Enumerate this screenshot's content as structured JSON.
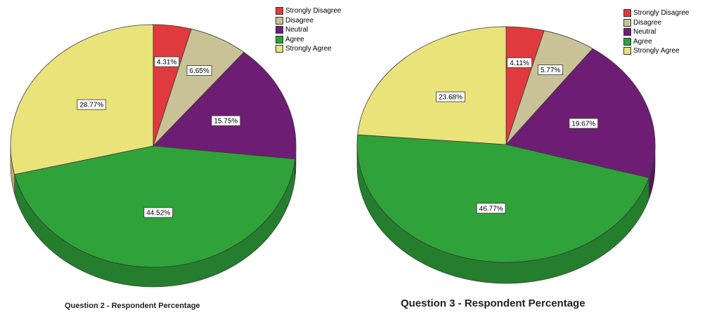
{
  "colors": {
    "Strongly Disagree": "#e03a3e",
    "Disagree": "#c8c296",
    "Neutral": "#6e1d74",
    "Agree": "#2fa23a",
    "Strongly Agree": "#eae37a"
  },
  "chart_data": [
    {
      "type": "pie",
      "title": "Question 2 - Respondent Percentage",
      "legend": {
        "position": "top-right",
        "entries": [
          "Strongly Disagree",
          "Disagree",
          "Neutral",
          "Agree",
          "Strongly Agree"
        ]
      },
      "categories": [
        "Strongly Disagree",
        "Disagree",
        "Neutral",
        "Agree",
        "Strongly Agree"
      ],
      "values": [
        4.31,
        6.65,
        15.75,
        44.52,
        28.77
      ],
      "value_labels": [
        "4.31%",
        "6.65%",
        "15.75%",
        "44.52%",
        "28.77%"
      ]
    },
    {
      "type": "pie",
      "title": "Question 3 - Respondent Percentage",
      "legend": {
        "position": "top-right",
        "entries": [
          "Strongly Disagree",
          "Disagree",
          "Neutral",
          "Agree",
          "Strongly Agree"
        ]
      },
      "categories": [
        "Strongly Disagree",
        "Disagree",
        "Neutral",
        "Agree",
        "Strongly Agree"
      ],
      "values": [
        4.11,
        5.77,
        19.67,
        46.77,
        23.68
      ],
      "value_labels": [
        "4.11%",
        "5.77%",
        "19.67%",
        "46.77%",
        "23.68%"
      ]
    }
  ]
}
